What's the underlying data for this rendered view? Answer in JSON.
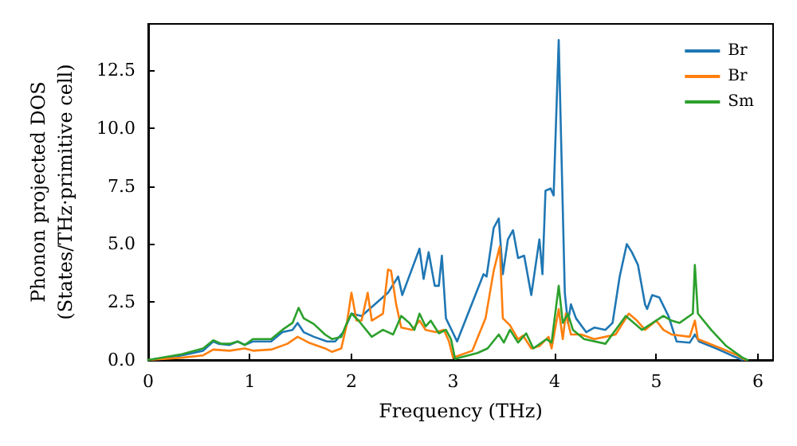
{
  "chart_data": {
    "type": "line",
    "xlabel": "Frequency (THz)",
    "ylabel": "Phonon projected DOS\n(States/THz·primitive cell)",
    "xlim": [
      0,
      6.15
    ],
    "ylim": [
      0,
      14.5
    ],
    "xticks": [
      0,
      1,
      2,
      3,
      4,
      5,
      6
    ],
    "yticks": [
      {
        "value": 0,
        "label": "0.0"
      },
      2.5,
      {
        "value": 5,
        "label": "5.0"
      },
      {
        "value": 7.5,
        "label": "7.5"
      },
      {
        "value": 10,
        "label": "10.0"
      },
      12.5
    ],
    "grid": false,
    "legend": "top right",
    "marker": "none",
    "line_style": "solid",
    "series": [
      {
        "name": "Br",
        "color": "#1f77b4",
        "x": [
          0,
          0.33,
          0.54,
          0.64,
          0.69,
          0.8,
          0.88,
          0.95,
          1.03,
          1.21,
          1.32,
          1.42,
          1.47,
          1.53,
          1.63,
          1.76,
          1.84,
          1.92,
          1.97,
          2.0,
          2.1,
          2.36,
          2.46,
          2.5,
          2.67,
          2.71,
          2.76,
          2.82,
          2.86,
          2.89,
          2.93,
          3.04,
          3.3,
          3.33,
          3.4,
          3.45,
          3.49,
          3.54,
          3.59,
          3.64,
          3.7,
          3.77,
          3.85,
          3.88,
          3.91,
          3.96,
          3.99,
          4.04,
          4.1,
          4.13,
          4.16,
          4.21,
          4.31,
          4.39,
          4.5,
          4.57,
          4.64,
          4.71,
          4.76,
          4.82,
          4.89,
          4.91,
          4.96,
          5.03,
          5.12,
          5.2,
          5.33,
          5.38,
          5.42,
          5.59,
          5.74,
          5.85
        ],
        "values": [
          0,
          0.2,
          0.4,
          0.8,
          0.7,
          0.65,
          0.8,
          0.65,
          0.8,
          0.8,
          1.2,
          1.3,
          1.6,
          1.2,
          1.0,
          0.8,
          0.8,
          1.2,
          1.7,
          2.0,
          1.9,
          2.9,
          3.6,
          2.8,
          4.8,
          3.5,
          4.65,
          3.2,
          3.2,
          4.5,
          1.8,
          0.8,
          3.7,
          3.6,
          5.7,
          6.1,
          3.7,
          5.2,
          5.6,
          4.4,
          4.5,
          2.8,
          5.2,
          3.7,
          7.3,
          7.4,
          7.1,
          13.8,
          2.9,
          1.6,
          2.4,
          1.8,
          1.2,
          1.4,
          1.3,
          1.6,
          3.6,
          5.0,
          4.65,
          4.1,
          2.4,
          2.2,
          2.8,
          2.7,
          1.9,
          0.8,
          0.75,
          1.1,
          0.8,
          0.5,
          0.2,
          0
        ]
      },
      {
        "name": "Br",
        "color": "#ff7f0e",
        "x": [
          0,
          0.33,
          0.54,
          0.64,
          0.8,
          0.95,
          1.03,
          1.21,
          1.37,
          1.47,
          1.58,
          1.74,
          1.81,
          1.9,
          1.95,
          2.0,
          2.05,
          2.1,
          2.16,
          2.2,
          2.31,
          2.36,
          2.39,
          2.44,
          2.49,
          2.6,
          2.67,
          2.73,
          2.83,
          2.91,
          2.96,
          3.0,
          3.19,
          3.32,
          3.4,
          3.46,
          3.49,
          3.56,
          3.64,
          3.69,
          3.77,
          3.85,
          3.94,
          3.97,
          4.04,
          4.08,
          4.11,
          4.16,
          4.26,
          4.39,
          4.5,
          4.6,
          4.73,
          4.81,
          4.89,
          5.0,
          5.07,
          5.15,
          5.33,
          5.38,
          5.41,
          5.64,
          5.8,
          5.88
        ],
        "values": [
          0,
          0.1,
          0.2,
          0.45,
          0.4,
          0.5,
          0.4,
          0.45,
          0.7,
          1.0,
          0.75,
          0.5,
          0.35,
          0.5,
          1.45,
          2.9,
          1.7,
          1.7,
          2.9,
          1.7,
          2.0,
          3.9,
          3.85,
          2.4,
          1.4,
          1.3,
          1.7,
          1.3,
          1.2,
          1.3,
          0.8,
          0.1,
          0.4,
          1.8,
          3.85,
          4.9,
          1.8,
          1.5,
          0.9,
          1.05,
          0.5,
          0.6,
          1.0,
          0.5,
          2.2,
          0.9,
          2.0,
          1.1,
          1.1,
          0.9,
          1.0,
          1.1,
          2.0,
          1.7,
          1.3,
          1.7,
          1.3,
          1.1,
          1.0,
          1.7,
          0.9,
          0.5,
          0.2,
          0
        ]
      },
      {
        "name": "Sm",
        "color": "#2ca02c",
        "x": [
          0,
          0.33,
          0.54,
          0.64,
          0.72,
          0.8,
          0.88,
          0.95,
          1.03,
          1.21,
          1.32,
          1.42,
          1.48,
          1.53,
          1.63,
          1.74,
          1.81,
          1.9,
          1.95,
          2.0,
          2.07,
          2.2,
          2.31,
          2.41,
          2.49,
          2.57,
          2.62,
          2.67,
          2.73,
          2.78,
          2.86,
          2.93,
          2.98,
          3.02,
          3.24,
          3.34,
          3.45,
          3.5,
          3.56,
          3.64,
          3.72,
          3.79,
          3.92,
          3.97,
          4.04,
          4.08,
          4.13,
          4.18,
          4.29,
          4.5,
          4.7,
          4.86,
          5.07,
          5.15,
          5.23,
          5.36,
          5.38,
          5.41,
          5.54,
          5.69,
          5.85,
          5.9
        ],
        "values": [
          0,
          0.25,
          0.5,
          0.85,
          0.7,
          0.7,
          0.8,
          0.65,
          0.9,
          0.9,
          1.3,
          1.6,
          2.25,
          1.8,
          1.55,
          1.1,
          0.9,
          1.0,
          1.55,
          2.0,
          1.7,
          1.0,
          1.3,
          1.1,
          1.9,
          1.6,
          1.3,
          2.0,
          1.45,
          1.7,
          1.15,
          1.3,
          0.9,
          0.05,
          0.3,
          0.5,
          1.1,
          0.75,
          1.3,
          0.75,
          1.15,
          0.5,
          0.9,
          0.75,
          3.2,
          1.6,
          2.0,
          1.3,
          0.9,
          0.7,
          1.9,
          1.3,
          1.9,
          1.7,
          1.6,
          2.0,
          4.1,
          2.0,
          1.3,
          0.6,
          0.1,
          0
        ]
      }
    ]
  }
}
